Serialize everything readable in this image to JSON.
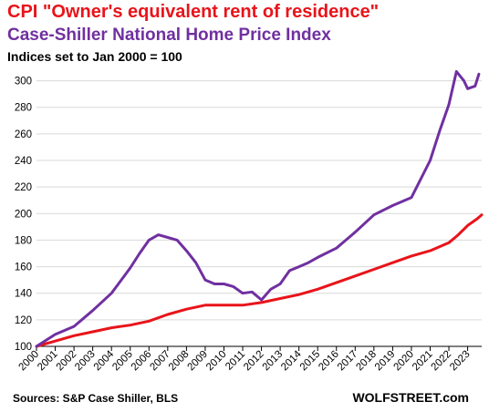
{
  "chart_data": {
    "type": "line",
    "title": "CPI \"Owner's equivalent rent of residence\"",
    "subtitle": "Case-Shiller National Home Price Index",
    "note": "Indices set to Jan 2000 = 100",
    "source": "Sources: S&P Case Shiller, BLS",
    "brand": "WOLFSTREET.com",
    "ylim": [
      100,
      310
    ],
    "yticks": [
      100,
      120,
      140,
      160,
      180,
      200,
      220,
      240,
      260,
      280,
      300
    ],
    "xlim": [
      2000,
      2023.75
    ],
    "xticks": [
      "2000",
      "2001",
      "2002",
      "2003",
      "2004",
      "2005",
      "2006",
      "2007",
      "2008",
      "2009",
      "2010",
      "2011",
      "2012",
      "2013",
      "2014",
      "2015",
      "2016",
      "2017",
      "2018",
      "2019",
      "2020",
      "2021",
      "2022",
      "2023"
    ],
    "grid": "horizontal",
    "series": [
      {
        "color": "#e8141a",
        "x": [
          2000,
          2001,
          2002,
          2003,
          2004,
          2005,
          2006,
          2007,
          2008,
          2009,
          2010,
          2011,
          2012,
          2013,
          2014,
          2015,
          2016,
          2017,
          2018,
          2019,
          2020,
          2021,
          2022,
          2022.5,
          2023,
          2023.5,
          2023.75
        ],
        "values": [
          100,
          104,
          108,
          111,
          114,
          116,
          119,
          124,
          128,
          131,
          131,
          131,
          133,
          136,
          139,
          143,
          148,
          153,
          158,
          163,
          168,
          172,
          178,
          184,
          191,
          196,
          199
        ]
      },
      {
        "color": "#7030a0",
        "x": [
          2000,
          2001,
          2002,
          2003,
          2004,
          2005,
          2005.5,
          2006,
          2006.5,
          2007,
          2007.5,
          2008,
          2008.5,
          2009,
          2009.5,
          2010,
          2010.5,
          2011,
          2011.5,
          2012,
          2012.5,
          2013,
          2013.5,
          2014,
          2014.5,
          2015,
          2016,
          2017,
          2018,
          2019,
          2020,
          2021,
          2021.5,
          2022,
          2022.4,
          2022.8,
          2023,
          2023.4,
          2023.6
        ],
        "values": [
          100,
          109,
          115,
          127,
          140,
          159,
          170,
          180,
          184,
          182,
          180,
          172,
          163,
          150,
          147,
          147,
          145,
          140,
          141,
          135,
          143,
          147,
          157,
          160,
          163,
          167,
          174,
          186,
          199,
          206,
          212,
          240,
          262,
          282,
          307,
          300,
          294,
          296,
          305
        ]
      }
    ]
  }
}
